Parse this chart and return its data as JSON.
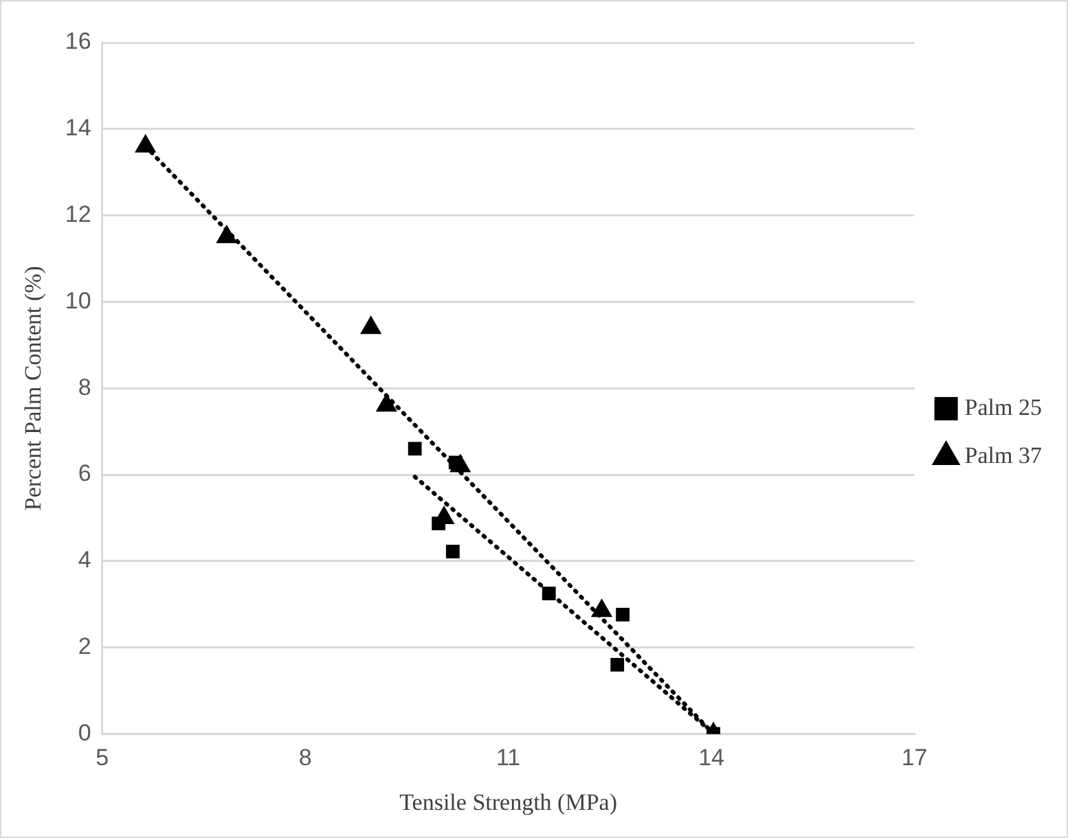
{
  "chart_data": {
    "type": "scatter",
    "xlabel": "Tensile Strength (MPa)",
    "ylabel": "Percent Palm Content (%)",
    "xlim": [
      5,
      17
    ],
    "xticks": [
      5,
      8,
      11,
      14,
      17
    ],
    "ylim": [
      0,
      16
    ],
    "yticks": [
      0,
      2,
      4,
      6,
      8,
      10,
      12,
      14,
      16
    ],
    "grid": "y",
    "legend": "right",
    "series": [
      {
        "name": "Palm 25",
        "marker": "square",
        "color": "#000000",
        "x": [
          9.62,
          9.97,
          10.18,
          10.22,
          11.6,
          12.69,
          12.61,
          14.03
        ],
        "values": [
          6.6,
          4.87,
          4.22,
          6.28,
          3.25,
          2.76,
          1.6,
          0
        ]
      },
      {
        "name": "Palm 37",
        "marker": "triangle",
        "color": "#000000",
        "x": [
          5.64,
          6.84,
          8.97,
          9.2,
          10.29,
          10.05,
          12.38,
          14.03
        ],
        "values": [
          13.6,
          11.5,
          9.4,
          7.6,
          6.2,
          5.0,
          2.85,
          0
        ]
      },
      {
        "type": "line",
        "marker": "none",
        "line_style": "dotted",
        "color": "#000000",
        "x": [
          9.62,
          14
        ],
        "values": [
          5.95,
          0.05
        ]
      },
      {
        "type": "line",
        "marker": "none",
        "line_style": "dotted",
        "color": "#000000",
        "x": [
          5.64,
          14
        ],
        "values": [
          13.6,
          0.05
        ]
      }
    ]
  }
}
